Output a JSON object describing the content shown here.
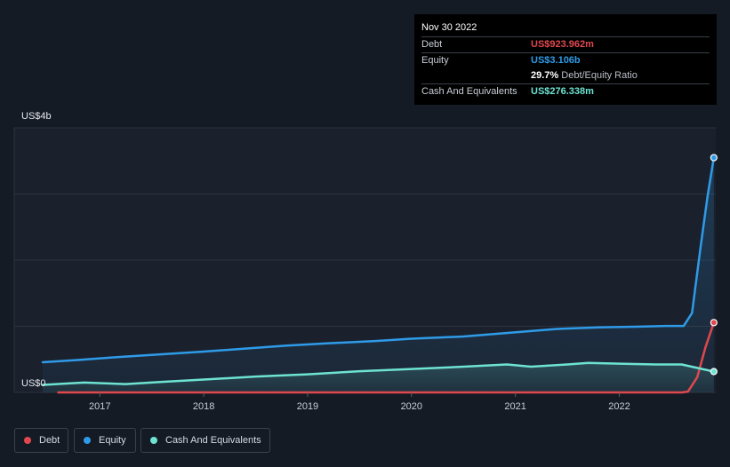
{
  "tooltip": {
    "date": "Nov 30 2022",
    "rows": [
      {
        "label": "Debt",
        "value": "US$923.962m",
        "color": "#e0484e"
      },
      {
        "label": "Equity",
        "value": "US$3.106b",
        "color": "#2f9be8"
      },
      {
        "label": "",
        "value": "29.7%",
        "suffix": "Debt/Equity Ratio",
        "color": "#ffffff"
      },
      {
        "label": "Cash And Equivalents",
        "value": "US$276.338m",
        "color": "#6ee3d2"
      }
    ]
  },
  "legend": [
    {
      "label": "Debt",
      "color": "#e0484e"
    },
    {
      "label": "Equity",
      "color": "#2f9be8"
    },
    {
      "label": "Cash And Equivalents",
      "color": "#6ee3d2"
    }
  ],
  "chart_data": {
    "type": "line",
    "y_unit": "US$ billions",
    "ylim": [
      0,
      3.5
    ],
    "xlim": [
      2016.45,
      2022.92
    ],
    "y_axis_labels": [
      {
        "value": 3.5,
        "label": "US$4b"
      },
      {
        "value": 0,
        "label": "US$0"
      }
    ],
    "x_ticks": [
      2017,
      2018,
      2019,
      2020,
      2021,
      2022
    ],
    "x_tick_labels": [
      "2017",
      "2018",
      "2019",
      "2020",
      "2021",
      "2022"
    ],
    "grid": true,
    "series": [
      {
        "name": "Debt",
        "color": "#e0484e",
        "x": [
          2016.6,
          2017.0,
          2018.0,
          2019.0,
          2020.0,
          2021.0,
          2022.0,
          2022.6,
          2022.66,
          2022.75,
          2022.83,
          2022.91
        ],
        "y": [
          0,
          0,
          0,
          0,
          0,
          0,
          0,
          0,
          0.01,
          0.2,
          0.6,
          0.924
        ]
      },
      {
        "name": "Equity",
        "color": "#2f9be8",
        "x": [
          2016.45,
          2016.8,
          2017.2,
          2017.65,
          2018.0,
          2018.4,
          2018.8,
          2019.2,
          2019.65,
          2020.0,
          2020.5,
          2020.95,
          2021.4,
          2021.8,
          2022.2,
          2022.45,
          2022.62,
          2022.7,
          2022.78,
          2022.85,
          2022.91
        ],
        "y": [
          0.4,
          0.43,
          0.47,
          0.51,
          0.54,
          0.58,
          0.62,
          0.65,
          0.68,
          0.71,
          0.74,
          0.79,
          0.84,
          0.86,
          0.87,
          0.88,
          0.88,
          1.05,
          1.9,
          2.6,
          3.106
        ]
      },
      {
        "name": "Cash And Equivalents",
        "color": "#6ee3d2",
        "x": [
          2016.45,
          2016.85,
          2017.25,
          2017.6,
          2018.0,
          2018.5,
          2019.0,
          2019.5,
          2020.0,
          2020.5,
          2020.92,
          2021.15,
          2021.5,
          2021.7,
          2022.0,
          2022.35,
          2022.6,
          2022.91
        ],
        "y": [
          0.1,
          0.13,
          0.11,
          0.14,
          0.17,
          0.21,
          0.24,
          0.28,
          0.31,
          0.34,
          0.37,
          0.34,
          0.37,
          0.39,
          0.38,
          0.37,
          0.37,
          0.276
        ]
      }
    ]
  }
}
